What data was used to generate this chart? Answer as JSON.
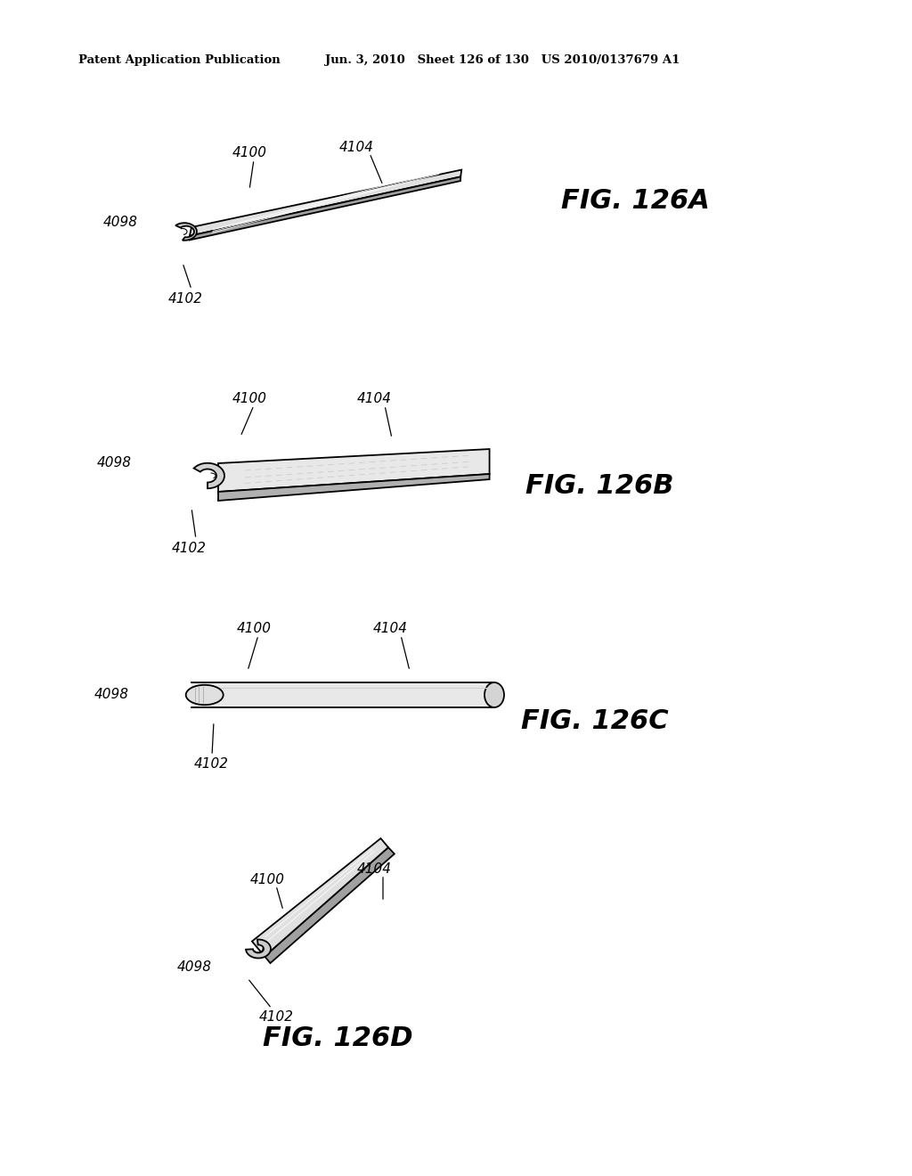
{
  "bg_color": "#ffffff",
  "header_left": "Patent Application Publication",
  "header_mid": "Jun. 3, 2010   Sheet 126 of 130   US 2010/0137679 A1",
  "fig_labels": [
    "FIG. 126A",
    "FIG. 126B",
    "FIG. 126C",
    "FIG. 126D"
  ],
  "lw": 1.3,
  "label_fontsize": 11,
  "fig_fontsize": 22
}
